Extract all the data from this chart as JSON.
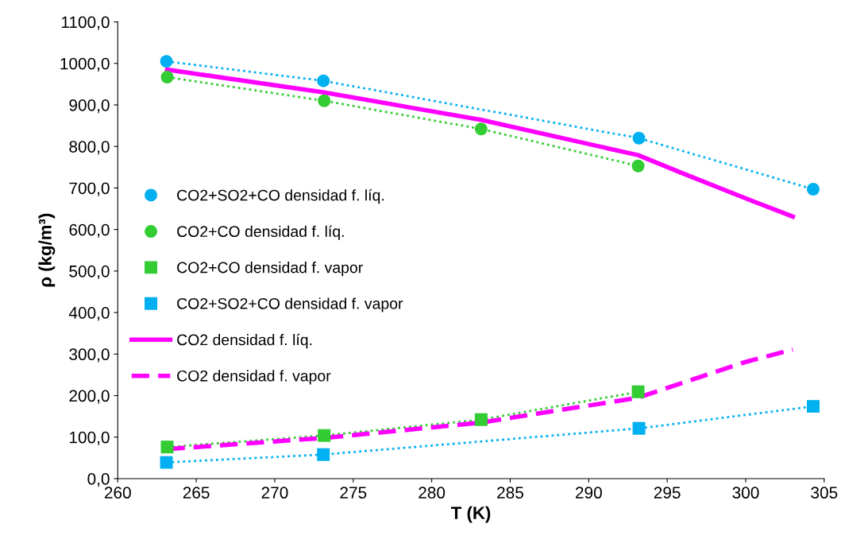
{
  "chart_data": {
    "type": "scatter",
    "xlabel": "T (K)",
    "ylabel": "ρ (kg/m³)",
    "xlim": [
      260,
      305
    ],
    "xticks": [
      260,
      265,
      270,
      275,
      280,
      285,
      290,
      295,
      300,
      305
    ],
    "ylim": [
      0,
      1100
    ],
    "yticks": [
      {
        "value": 0,
        "label": "0,0"
      },
      {
        "value": 100,
        "label": "100,0"
      },
      {
        "value": 200,
        "label": "200,0"
      },
      {
        "value": 300,
        "label": "300,0"
      },
      {
        "value": 400,
        "label": "400,0"
      },
      {
        "value": 500,
        "label": "500,0"
      },
      {
        "value": 600,
        "label": "600,0"
      },
      {
        "value": 700,
        "label": "700,0"
      },
      {
        "value": 800,
        "label": "800,0"
      },
      {
        "value": 900,
        "label": "900,0"
      },
      {
        "value": 1000,
        "label": "1000,0"
      },
      {
        "value": 1100,
        "label": "1100,0"
      }
    ],
    "grid": false,
    "legend": "center left",
    "series": [
      {
        "type": "line",
        "color": "#00b0f0",
        "line_style": "dotted",
        "marker": "none",
        "x": [
          263.1,
          273.1,
          293.2,
          304.3
        ],
        "values": [
          1005,
          958,
          820,
          697
        ]
      },
      {
        "type": "line",
        "color": "#33cc33",
        "line_style": "dotted",
        "marker": "none",
        "x": [
          263.15,
          273.15,
          283.15,
          293.15
        ],
        "values": [
          967,
          910,
          842,
          753
        ]
      },
      {
        "type": "line",
        "color": "#33cc33",
        "line_style": "dotted",
        "marker": "none",
        "x": [
          263.15,
          273.15,
          283.15,
          293.15
        ],
        "values": [
          76,
          104,
          142,
          209
        ]
      },
      {
        "type": "line",
        "color": "#00b0f0",
        "line_style": "dotted",
        "marker": "none",
        "x": [
          263.1,
          273.1,
          293.2,
          304.3
        ],
        "values": [
          39,
          58,
          121,
          174
        ]
      },
      {
        "name": "CO2+SO2+CO densidad f. líq.",
        "color": "#00b0f0",
        "marker": "circle",
        "x": [
          263.1,
          273.1,
          293.2,
          304.3
        ],
        "values": [
          1005,
          958,
          820,
          697
        ]
      },
      {
        "name": "CO2+CO densidad f. líq.",
        "color": "#33cc33",
        "marker": "circle",
        "x": [
          263.15,
          273.15,
          283.15,
          293.15
        ],
        "values": [
          967,
          910,
          842,
          753
        ]
      },
      {
        "name": "CO2+CO densidad f. vapor",
        "color": "#33cc33",
        "marker": "square",
        "x": [
          263.15,
          273.15,
          283.15,
          293.15
        ],
        "values": [
          76,
          104,
          142,
          209
        ]
      },
      {
        "name": "CO2+SO2+CO densidad f. vapor",
        "color": "#00b0f0",
        "marker": "square",
        "x": [
          263.1,
          273.1,
          293.2,
          304.3
        ],
        "values": [
          39,
          58,
          121,
          174
        ]
      },
      {
        "name": "CO2 densidad f. líq.",
        "type": "line",
        "color": "#ff00ff",
        "line_style": "solid",
        "marker": "none",
        "x": [
          263.15,
          273.15,
          283.15,
          293.15,
          296,
          300,
          303
        ],
        "values": [
          985,
          930,
          864,
          779,
          735,
          675,
          631
        ]
      },
      {
        "name": "CO2 densidad f. vapor",
        "type": "line",
        "color": "#ff00ff",
        "line_style": "dashed",
        "marker": "none",
        "x": [
          263.15,
          273.15,
          283.15,
          293.15,
          296,
          300,
          303
        ],
        "values": [
          71,
          98,
          135,
          195,
          231,
          281,
          311
        ]
      }
    ]
  }
}
